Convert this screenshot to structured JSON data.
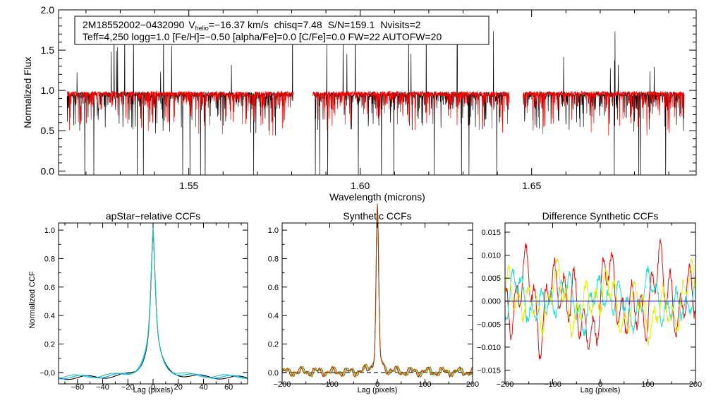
{
  "chart_data": [
    {
      "id": "spectrum",
      "type": "line",
      "title": "",
      "xlabel": "Wavelength (microns)",
      "ylabel": "Normalized Flux",
      "xlim": [
        1.512,
        1.698
      ],
      "ylim": [
        -0.05,
        2.0
      ],
      "x_ticks": [
        1.55,
        1.6,
        1.65
      ],
      "x_tick_labels": [
        "1.55",
        "1.60",
        "1.65"
      ],
      "y_ticks": [
        0.0,
        0.5,
        1.0,
        1.5,
        2.0
      ],
      "y_tick_labels": [
        "0.0",
        "0.5",
        "1.0",
        "1.5",
        "2.0"
      ],
      "chips": [
        [
          1.5145,
          1.5805
        ],
        [
          1.5862,
          1.6435
        ],
        [
          1.6475,
          1.6945
        ]
      ],
      "annotation": {
        "line1_star": "2M18552002−0432090",
        "line1_vhelio_label": "V",
        "line1_vhelio_sub": "helio",
        "line1_vhelio_value": "=−16.37 km/s",
        "line1_chisq": "chisq=7.48",
        "line1_sn": "S/N=159.1",
        "line1_nvisits": "Nvisits=2",
        "line2": "Teff=4,250 logg=1.0 [Fe/H]=−0.50 [alpha/Fe]=0.0 [C/Fe]=0.0 FW=22 AUTOFW=20"
      },
      "series": [
        {
          "name": "observed",
          "color": "#000000",
          "continuum": 0.95
        },
        {
          "name": "model",
          "color": "#ff0000",
          "continuum": 0.96
        }
      ]
    },
    {
      "id": "apstar-ccf",
      "type": "line",
      "title": "apStar−relative CCFs",
      "xlabel": "Lag (pixels)",
      "ylabel": "Normalized CCF",
      "xlim": [
        -75,
        75
      ],
      "ylim": [
        -0.08,
        1.05
      ],
      "x_ticks": [
        -60,
        -40,
        -20,
        0,
        20,
        40,
        60
      ],
      "x_tick_labels": [
        "−60",
        "−40",
        "−20",
        "0",
        "20",
        "40",
        "60"
      ],
      "y_ticks": [
        0.0,
        0.2,
        0.4,
        0.6,
        0.8,
        1.0
      ],
      "y_tick_labels": [
        "−0.0",
        "0.2",
        "0.4",
        "0.6",
        "0.8",
        "1.0"
      ],
      "peak": 0.99,
      "series": [
        {
          "name": "ccf-a",
          "color": "#000000"
        },
        {
          "name": "ccf-b",
          "color": "#00aaff"
        },
        {
          "name": "ccf-c",
          "color": "#2fbfa0"
        }
      ]
    },
    {
      "id": "synthetic-ccf",
      "type": "line",
      "title": "Synthetic CCFs",
      "xlabel": "Lag (pixels)",
      "ylabel": "",
      "xlim": [
        -200,
        200
      ],
      "ylim": [
        -0.08,
        1.05
      ],
      "x_ticks": [
        -200,
        -100,
        0,
        100,
        200
      ],
      "x_tick_labels": [
        "−200",
        "−100",
        "0",
        "100",
        "200"
      ],
      "y_ticks": [
        0.0,
        0.2,
        0.4,
        0.6,
        0.8,
        1.0
      ],
      "y_tick_labels": [
        "0.0",
        "0.2",
        "0.4",
        "0.6",
        "0.8",
        "1.0"
      ],
      "zero_line": {
        "value": 0.0,
        "style": "dashed",
        "color": "#000000"
      },
      "series": [
        {
          "name": "synth-green",
          "color": "#2e9a2e"
        },
        {
          "name": "synth-orange",
          "color": "#ff8c00"
        },
        {
          "name": "synth-brown",
          "color": "#8b3a1a"
        }
      ]
    },
    {
      "id": "difference-ccf",
      "type": "line",
      "title": "Difference Synthetic CCFs",
      "xlabel": "Lag (pixels)",
      "ylabel": "",
      "xlim": [
        -200,
        200
      ],
      "ylim": [
        -0.018,
        0.017
      ],
      "x_ticks": [
        -200,
        -100,
        0,
        100,
        200
      ],
      "x_tick_labels": [
        "−200",
        "−100",
        "0",
        "100",
        "200"
      ],
      "y_ticks": [
        -0.015,
        -0.01,
        -0.005,
        0.0,
        0.005,
        0.01,
        0.015
      ],
      "y_tick_labels": [
        "−0.015",
        "−0.010",
        "−0.005",
        "0.000",
        "0.005",
        "0.010",
        "0.015"
      ],
      "zero_line": {
        "value": 0.0,
        "style": "solid",
        "color": "#000099"
      },
      "series": [
        {
          "name": "diff-red",
          "color": "#dd1111"
        },
        {
          "name": "diff-cyan",
          "color": "#22ddcc"
        },
        {
          "name": "diff-yellow",
          "color": "#ddee00"
        }
      ]
    }
  ]
}
